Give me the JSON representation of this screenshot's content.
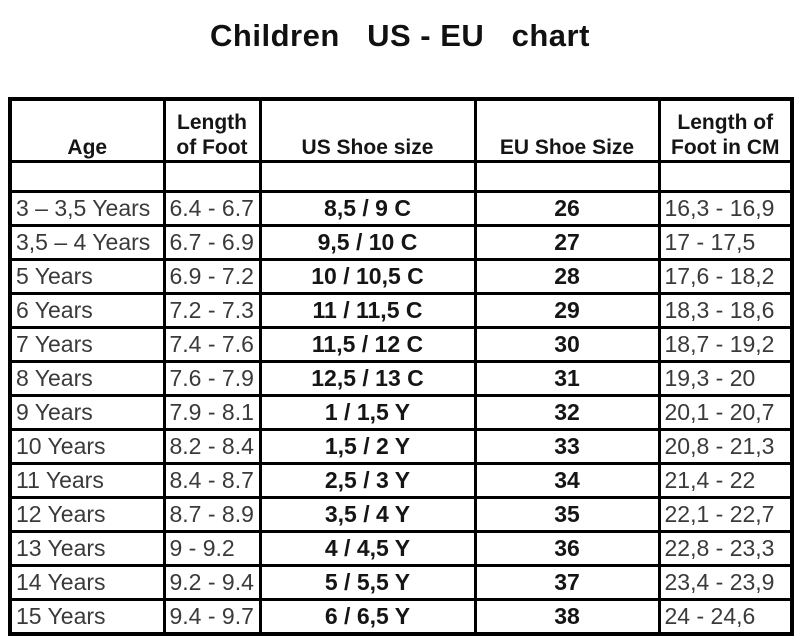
{
  "page": {
    "title": "Children   US - EU   chart"
  },
  "table": {
    "header_labels": [
      "Age",
      "Length\nof Foot",
      "US Shoe size",
      "EU Shoe Size",
      "Length of\nFoot in CM"
    ]
  },
  "chart_data": {
    "type": "table",
    "title": "Children US - EU chart",
    "columns": [
      "Age",
      "Length of Foot",
      "US Shoe size",
      "EU Shoe Size",
      "Length of Foot in CM"
    ],
    "rows": [
      [
        "3 – 3,5 Years",
        "6.4 - 6.7",
        "8,5 / 9 C",
        "26",
        "16,3 - 16,9"
      ],
      [
        "3,5 – 4 Years",
        "6.7 - 6.9",
        "9,5 / 10 C",
        "27",
        "17 - 17,5"
      ],
      [
        "5 Years",
        "6.9 - 7.2",
        "10 / 10,5 C",
        "28",
        "17,6 - 18,2"
      ],
      [
        "6 Years",
        "7.2 - 7.3",
        "11 / 11,5 C",
        "29",
        "18,3 - 18,6"
      ],
      [
        "7 Years",
        "7.4 - 7.6",
        "11,5 / 12 C",
        "30",
        "18,7 - 19,2"
      ],
      [
        "8 Years",
        "7.6 - 7.9",
        "12,5 / 13 C",
        "31",
        "19,3 - 20"
      ],
      [
        "9 Years",
        "7.9 - 8.1",
        "1 / 1,5 Y",
        "32",
        "20,1 - 20,7"
      ],
      [
        "10 Years",
        "8.2 - 8.4",
        "1,5 / 2 Y",
        "33",
        "20,8 - 21,3"
      ],
      [
        "11 Years",
        "8.4 - 8.7",
        "2,5 / 3 Y",
        "34",
        "21,4 - 22"
      ],
      [
        "12 Years",
        "8.7 - 8.9",
        "3,5 / 4 Y",
        "35",
        "22,1 - 22,7"
      ],
      [
        "13 Years",
        "9 - 9.2",
        "4 / 4,5 Y",
        "36",
        "22,8 - 23,3"
      ],
      [
        "14 Years",
        "9.2 - 9.4",
        "5 / 5,5 Y",
        "37",
        "23,4 - 23,9"
      ],
      [
        "15 Years",
        "9.4 - 9.7",
        "6 / 6,5 Y",
        "38",
        "24 - 24,6"
      ]
    ]
  }
}
